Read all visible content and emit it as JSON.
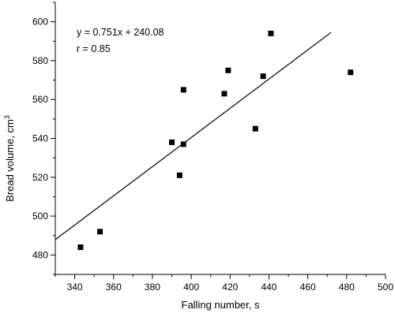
{
  "chart_data": {
    "type": "scatter",
    "title": "",
    "xlabel": "Falling number, s",
    "ylabel": "Bread  volume, cm",
    "ylabel_superscript": "3",
    "xlim": [
      330,
      500
    ],
    "ylim": [
      470,
      610
    ],
    "x_ticks": [
      340,
      360,
      380,
      400,
      420,
      440,
      460,
      480,
      500
    ],
    "y_ticks": [
      480,
      500,
      520,
      540,
      560,
      580,
      600
    ],
    "grid": false,
    "legend": "none",
    "annotations": [
      "y = 0.751x + 240.08",
      "r = 0.85"
    ],
    "marker_color": "#000000",
    "line_color": "#000000",
    "points": [
      {
        "x": 343,
        "y": 484
      },
      {
        "x": 353,
        "y": 492
      },
      {
        "x": 390,
        "y": 538
      },
      {
        "x": 394,
        "y": 521
      },
      {
        "x": 396,
        "y": 537
      },
      {
        "x": 396,
        "y": 565
      },
      {
        "x": 417,
        "y": 563
      },
      {
        "x": 419,
        "y": 575
      },
      {
        "x": 433,
        "y": 545
      },
      {
        "x": 437,
        "y": 572
      },
      {
        "x": 441,
        "y": 594
      },
      {
        "x": 482,
        "y": 574
      }
    ],
    "trendline": {
      "slope": 0.751,
      "intercept": 240.08,
      "x_range": [
        330,
        472
      ]
    }
  }
}
